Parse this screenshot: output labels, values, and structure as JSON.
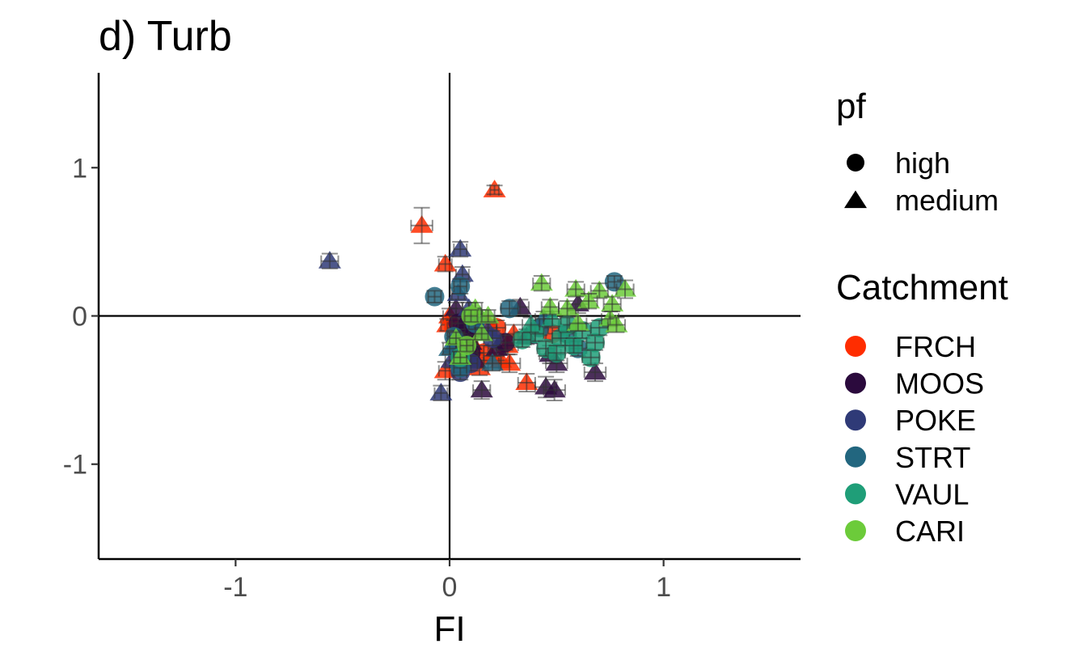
{
  "chart_data": {
    "type": "scatter",
    "title": "d) Turb",
    "xlabel": "FI",
    "ylabel": "",
    "xlim": [
      -1.64,
      1.64
    ],
    "ylim": [
      -1.64,
      1.64
    ],
    "x_ticks": [
      {
        "value": -1,
        "label": "-1"
      },
      {
        "value": 0,
        "label": "0"
      },
      {
        "value": 1,
        "label": "1"
      }
    ],
    "y_ticks": [
      {
        "value": -1,
        "label": "-1"
      },
      {
        "value": 0,
        "label": "0"
      },
      {
        "value": 1,
        "label": "1"
      }
    ],
    "reference_lines": {
      "x": 0,
      "y": 0
    },
    "grid": false,
    "error_bars": true,
    "shape_legend": {
      "title": "pf",
      "entries": [
        {
          "label": "high",
          "shape": "circle"
        },
        {
          "label": "medium",
          "shape": "triangle"
        }
      ]
    },
    "color_legend": {
      "title": "Catchment",
      "entries": [
        {
          "label": "FRCH",
          "color": "#FF2D00"
        },
        {
          "label": "MOOS",
          "color": "#2B0A3D"
        },
        {
          "label": "POKE",
          "color": "#2F3A77"
        },
        {
          "label": "STRT",
          "color": "#22667F"
        },
        {
          "label": "VAUL",
          "color": "#1F9E78"
        },
        {
          "label": "CARI",
          "color": "#6CCB3A"
        }
      ]
    },
    "series": [
      {
        "catchment": "FRCH",
        "pf": "medium",
        "points": [
          [
            0.21,
            0.85,
            0.02,
            0.03
          ],
          [
            -0.13,
            0.61,
            0.05,
            0.12
          ],
          [
            -0.02,
            0.35,
            0.03,
            0.05
          ],
          [
            0.0,
            0.0,
            0.03,
            0.05
          ],
          [
            -0.01,
            -0.06,
            0.03,
            0.04
          ],
          [
            0.05,
            -0.12,
            0.03,
            0.05
          ],
          [
            0.12,
            -0.22,
            0.04,
            0.06
          ],
          [
            0.2,
            -0.28,
            0.05,
            0.07
          ],
          [
            0.27,
            -0.2,
            0.05,
            0.06
          ],
          [
            0.36,
            -0.45,
            0.04,
            0.06
          ],
          [
            0.24,
            -0.3,
            0.04,
            0.05
          ],
          [
            -0.02,
            -0.37,
            0.03,
            0.06
          ],
          [
            0.18,
            -0.05,
            0.04,
            0.05
          ],
          [
            0.3,
            -0.12,
            0.05,
            0.06
          ],
          [
            0.07,
            -0.3,
            0.03,
            0.05
          ],
          [
            0.14,
            -0.35,
            0.04,
            0.05
          ],
          [
            0.28,
            -0.32,
            0.05,
            0.06
          ],
          [
            0.1,
            -0.17,
            0.03,
            0.05
          ]
        ]
      },
      {
        "catchment": "FRCH",
        "pf": "high",
        "points": [
          [
            0.02,
            -0.08,
            0.03,
            0.05
          ],
          [
            0.08,
            -0.18,
            0.03,
            0.05
          ],
          [
            0.16,
            -0.25,
            0.04,
            0.05
          ],
          [
            0.22,
            -0.08,
            0.04,
            0.05
          ],
          [
            0.04,
            -0.28,
            0.03,
            0.05
          ],
          [
            0.48,
            -0.12,
            0.03,
            0.04
          ]
        ]
      },
      {
        "catchment": "MOOS",
        "pf": "medium",
        "points": [
          [
            0.03,
            0.05,
            0.03,
            0.04
          ],
          [
            0.06,
            -0.1,
            0.03,
            0.05
          ],
          [
            0.1,
            -0.18,
            0.03,
            0.05
          ],
          [
            0.15,
            -0.5,
            0.04,
            0.06
          ],
          [
            0.33,
            0.06,
            0.04,
            0.05
          ],
          [
            0.47,
            -0.26,
            0.05,
            0.06
          ],
          [
            0.5,
            -0.32,
            0.05,
            0.06
          ],
          [
            0.45,
            -0.48,
            0.05,
            0.07
          ],
          [
            0.49,
            -0.5,
            0.05,
            0.07
          ],
          [
            0.68,
            -0.38,
            0.05,
            0.06
          ],
          [
            0.6,
            0.08,
            0.05,
            0.06
          ],
          [
            0.12,
            -0.3,
            0.04,
            0.05
          ],
          [
            0.02,
            -0.2,
            0.03,
            0.05
          ],
          [
            0.22,
            -0.22,
            0.04,
            0.05
          ],
          [
            0.36,
            -0.14,
            0.04,
            0.05
          ],
          [
            0.08,
            -0.02,
            0.03,
            0.04
          ]
        ]
      },
      {
        "catchment": "MOOS",
        "pf": "high",
        "points": [
          [
            0.07,
            -0.12,
            0.03,
            0.05
          ],
          [
            0.12,
            -0.08,
            0.03,
            0.05
          ],
          [
            0.04,
            -0.05,
            0.03,
            0.04
          ],
          [
            0.1,
            -0.25,
            0.03,
            0.05
          ],
          [
            0.26,
            -0.18,
            0.04,
            0.05
          ]
        ]
      },
      {
        "catchment": "POKE",
        "pf": "medium",
        "points": [
          [
            -0.56,
            0.37,
            0.04,
            0.05
          ],
          [
            0.05,
            0.45,
            0.03,
            0.05
          ],
          [
            0.06,
            0.28,
            0.03,
            0.05
          ],
          [
            0.04,
            0.15,
            0.03,
            0.04
          ],
          [
            -0.04,
            -0.52,
            0.03,
            0.05
          ],
          [
            0.01,
            -0.3,
            0.03,
            0.05
          ],
          [
            0.09,
            0.05,
            0.03,
            0.04
          ],
          [
            0.18,
            -0.1,
            0.04,
            0.05
          ],
          [
            0.14,
            0.0,
            0.03,
            0.04
          ]
        ]
      },
      {
        "catchment": "POKE",
        "pf": "high",
        "points": [
          [
            0.05,
            -0.38,
            0.03,
            0.05
          ],
          [
            0.1,
            -0.32,
            0.03,
            0.05
          ],
          [
            0.2,
            -0.15,
            0.04,
            0.05
          ],
          [
            0.03,
            -0.18,
            0.03,
            0.04
          ]
        ]
      },
      {
        "catchment": "STRT",
        "pf": "high",
        "points": [
          [
            -0.07,
            0.13,
            0.03,
            0.04
          ],
          [
            0.05,
            0.2,
            0.03,
            0.05
          ],
          [
            0.28,
            0.05,
            0.04,
            0.05
          ],
          [
            0.05,
            -0.35,
            0.03,
            0.05
          ],
          [
            0.77,
            0.23,
            0.03,
            0.04
          ],
          [
            0.6,
            -0.22,
            0.04,
            0.05
          ],
          [
            0.02,
            -0.14,
            0.03,
            0.04
          ],
          [
            0.12,
            -0.05,
            0.03,
            0.04
          ],
          [
            0.42,
            -0.08,
            0.04,
            0.05
          ],
          [
            0.55,
            -0.12,
            0.04,
            0.05
          ]
        ]
      },
      {
        "catchment": "STRT",
        "pf": "medium",
        "points": [
          [
            0.0,
            -0.22,
            0.03,
            0.04
          ],
          [
            0.2,
            -0.32,
            0.04,
            0.05
          ],
          [
            0.44,
            -0.02,
            0.04,
            0.05
          ]
        ]
      },
      {
        "catchment": "VAUL",
        "pf": "high",
        "points": [
          [
            0.4,
            -0.12,
            0.04,
            0.05
          ],
          [
            0.45,
            -0.22,
            0.04,
            0.05
          ],
          [
            0.52,
            -0.15,
            0.04,
            0.05
          ],
          [
            0.58,
            -0.2,
            0.04,
            0.05
          ],
          [
            0.62,
            -0.1,
            0.04,
            0.05
          ],
          [
            0.66,
            -0.28,
            0.04,
            0.05
          ],
          [
            0.68,
            -0.18,
            0.04,
            0.05
          ],
          [
            0.55,
            -0.06,
            0.04,
            0.05
          ],
          [
            0.5,
            -0.25,
            0.04,
            0.05
          ],
          [
            0.7,
            -0.08,
            0.04,
            0.05
          ],
          [
            0.34,
            -0.16,
            0.04,
            0.05
          ],
          [
            0.05,
            -0.28,
            0.03,
            0.04
          ]
        ]
      },
      {
        "catchment": "VAUL",
        "pf": "medium",
        "points": [
          [
            0.38,
            -0.06,
            0.04,
            0.05
          ],
          [
            0.48,
            -0.02,
            0.04,
            0.05
          ]
        ]
      },
      {
        "catchment": "CARI",
        "pf": "medium",
        "points": [
          [
            0.43,
            0.22,
            0.04,
            0.05
          ],
          [
            0.47,
            0.06,
            0.04,
            0.05
          ],
          [
            0.55,
            0.05,
            0.04,
            0.05
          ],
          [
            0.59,
            0.18,
            0.04,
            0.05
          ],
          [
            0.7,
            0.17,
            0.04,
            0.05
          ],
          [
            0.76,
            0.08,
            0.04,
            0.05
          ],
          [
            0.82,
            0.18,
            0.04,
            0.06
          ],
          [
            0.75,
            -0.02,
            0.04,
            0.05
          ],
          [
            0.78,
            -0.06,
            0.04,
            0.05
          ],
          [
            0.12,
            0.05,
            0.03,
            0.04
          ],
          [
            0.18,
            0.0,
            0.03,
            0.04
          ],
          [
            0.03,
            -0.15,
            0.03,
            0.04
          ],
          [
            0.05,
            -0.28,
            0.03,
            0.04
          ],
          [
            0.15,
            -0.12,
            0.03,
            0.04
          ],
          [
            0.65,
            0.1,
            0.04,
            0.05
          ],
          [
            0.6,
            -0.05,
            0.04,
            0.05
          ]
        ]
      },
      {
        "catchment": "CARI",
        "pf": "high",
        "points": [
          [
            0.08,
            -0.2,
            0.03,
            0.04
          ],
          [
            0.1,
            0.0,
            0.03,
            0.04
          ]
        ]
      }
    ]
  }
}
